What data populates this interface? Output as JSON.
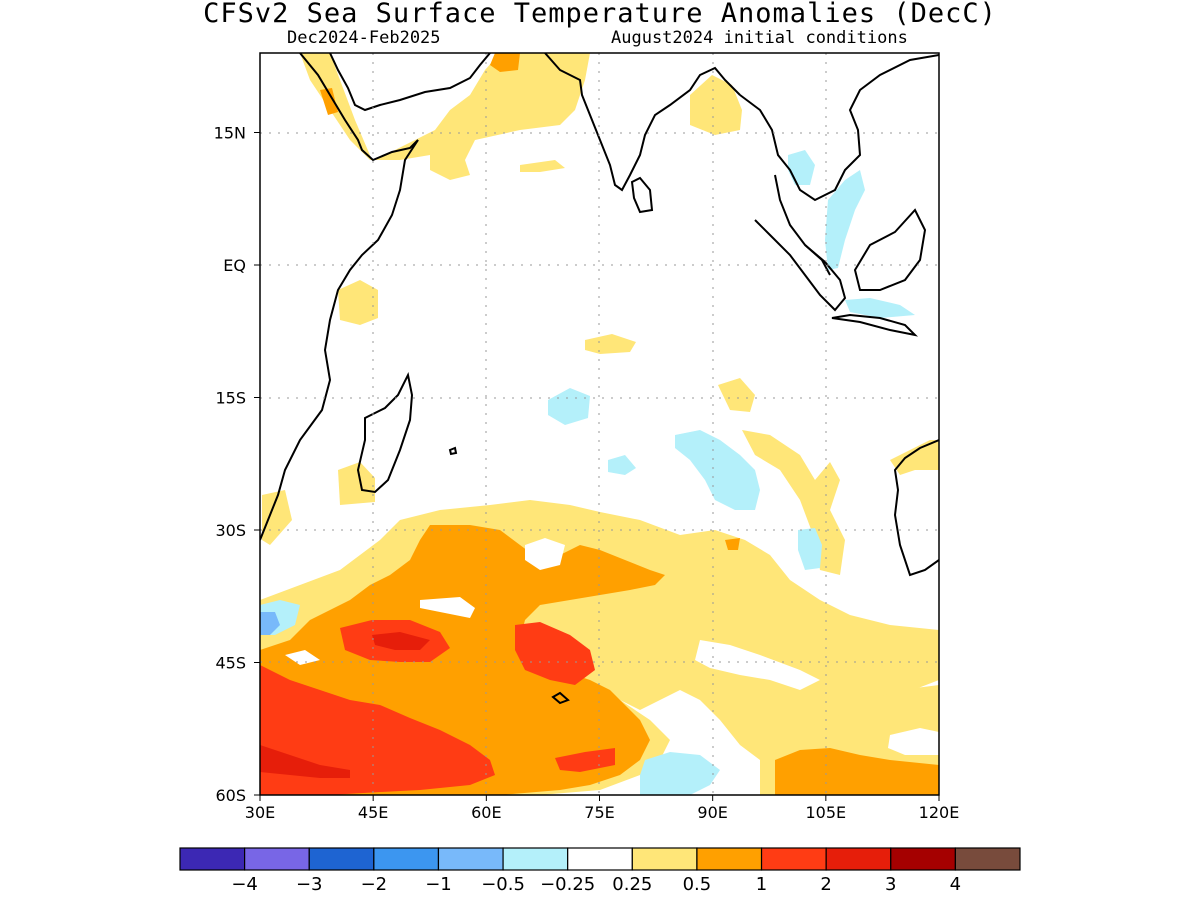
{
  "header": {
    "title": "CFSv2 Sea Surface Temperature Anomalies (DecC)",
    "period": "Dec2024-Feb2025",
    "initial_conditions": "August2024 initial conditions"
  },
  "map": {
    "lon_range": [
      30,
      120
    ],
    "lat_range": [
      -60,
      24
    ],
    "x_ticks": [
      {
        "value": 30,
        "label": "30E"
      },
      {
        "value": 45,
        "label": "45E"
      },
      {
        "value": 60,
        "label": "60E"
      },
      {
        "value": 75,
        "label": "75E"
      },
      {
        "value": 90,
        "label": "90E"
      },
      {
        "value": 105,
        "label": "105E"
      },
      {
        "value": 120,
        "label": "120E"
      }
    ],
    "y_ticks": [
      {
        "value": 15,
        "label": "15N"
      },
      {
        "value": 0,
        "label": "EQ"
      },
      {
        "value": -15,
        "label": "15S"
      },
      {
        "value": -30,
        "label": "30S"
      },
      {
        "value": -45,
        "label": "45S"
      },
      {
        "value": -60,
        "label": "60S"
      }
    ],
    "grid": true
  },
  "colorbar": {
    "colors": [
      "#3c28b4",
      "#7866e6",
      "#1e64d2",
      "#3c96f0",
      "#78b9fa",
      "#b4f0fa",
      "#ffffff",
      "#ffe678",
      "#ffa000",
      "#ff3c14",
      "#e61e0a",
      "#a50000",
      "#784b3c"
    ],
    "labels": [
      "-4",
      "-3",
      "-2",
      "-1",
      "-0.5",
      "-0.25",
      "0.25",
      "0.5",
      "1",
      "2",
      "3",
      "4"
    ]
  },
  "anomaly_colors": {
    "light_blue": "#b4f0fa",
    "blue": "#78b9fa",
    "mid_blue": "#3c96f0",
    "yellow": "#ffe678",
    "orange": "#ffa000",
    "red_orange": "#ff3c14",
    "red": "#e61e0a",
    "dark_red": "#a50000"
  }
}
